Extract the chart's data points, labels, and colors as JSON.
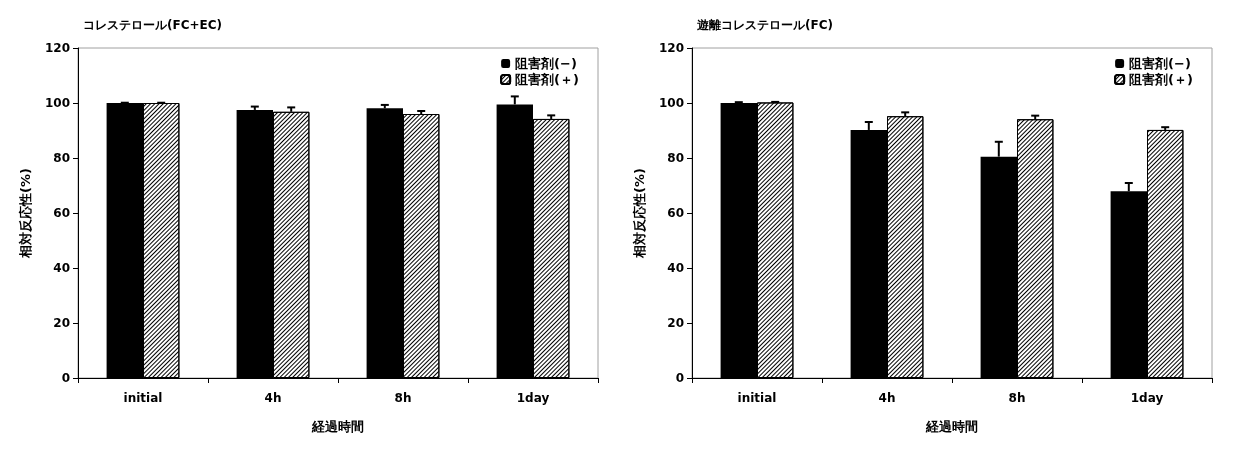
{
  "chart_data": [
    {
      "type": "bar",
      "title": "コレステロール(FC+EC)",
      "xlabel": "経過時間",
      "ylabel": "相対反応性(%)",
      "categories": [
        "initial",
        "4h",
        "8h",
        "1day"
      ],
      "ylim": [
        0,
        120
      ],
      "yticks": [
        0,
        20,
        40,
        60,
        80,
        100,
        120
      ],
      "legend": "top right",
      "grid": false,
      "series": [
        {
          "name": "阻害剤(−)",
          "color": "#000000",
          "values": [
            100,
            97.5,
            98.1,
            99.5
          ],
          "errors": [
            [
              100,
              100.1
            ],
            [
              97.5,
              98.7
            ],
            [
              98.1,
              99.3
            ],
            [
              99.5,
              102.4
            ]
          ]
        },
        {
          "name": "阻害剤(＋)",
          "color": "#ffffff",
          "values": [
            100,
            96.8,
            96.0,
            94.2
          ],
          "errors": [
            [
              100,
              100.1
            ],
            [
              96.8,
              98.4
            ],
            [
              96.0,
              97.1
            ],
            [
              94.2,
              95.5
            ]
          ]
        }
      ]
    },
    {
      "type": "bar",
      "title": "遊離コレステロール(FC)",
      "xlabel": "経過時間",
      "ylabel": "相対反応性(%)",
      "categories": [
        "initial",
        "4h",
        "8h",
        "1day"
      ],
      "ylim": [
        0,
        120
      ],
      "yticks": [
        0,
        20,
        40,
        60,
        80,
        100,
        120
      ],
      "legend": "top right",
      "grid": false,
      "series": [
        {
          "name": "阻害剤(−)",
          "color": "#000000",
          "values": [
            100,
            90.2,
            80.5,
            67.9
          ],
          "errors": [
            [
              100,
              100.3
            ],
            [
              90.2,
              93.1
            ],
            [
              80.5,
              85.9
            ],
            [
              67.9,
              70.9
            ]
          ]
        },
        {
          "name": "阻害剤(＋)",
          "color": "#ffffff",
          "values": [
            100.2,
            95.2,
            94.1,
            90.2
          ],
          "errors": [
            [
              100.2,
              100.4
            ],
            [
              95.2,
              96.6
            ],
            [
              94.1,
              95.4
            ],
            [
              90.2,
              91.2
            ]
          ]
        }
      ]
    }
  ]
}
